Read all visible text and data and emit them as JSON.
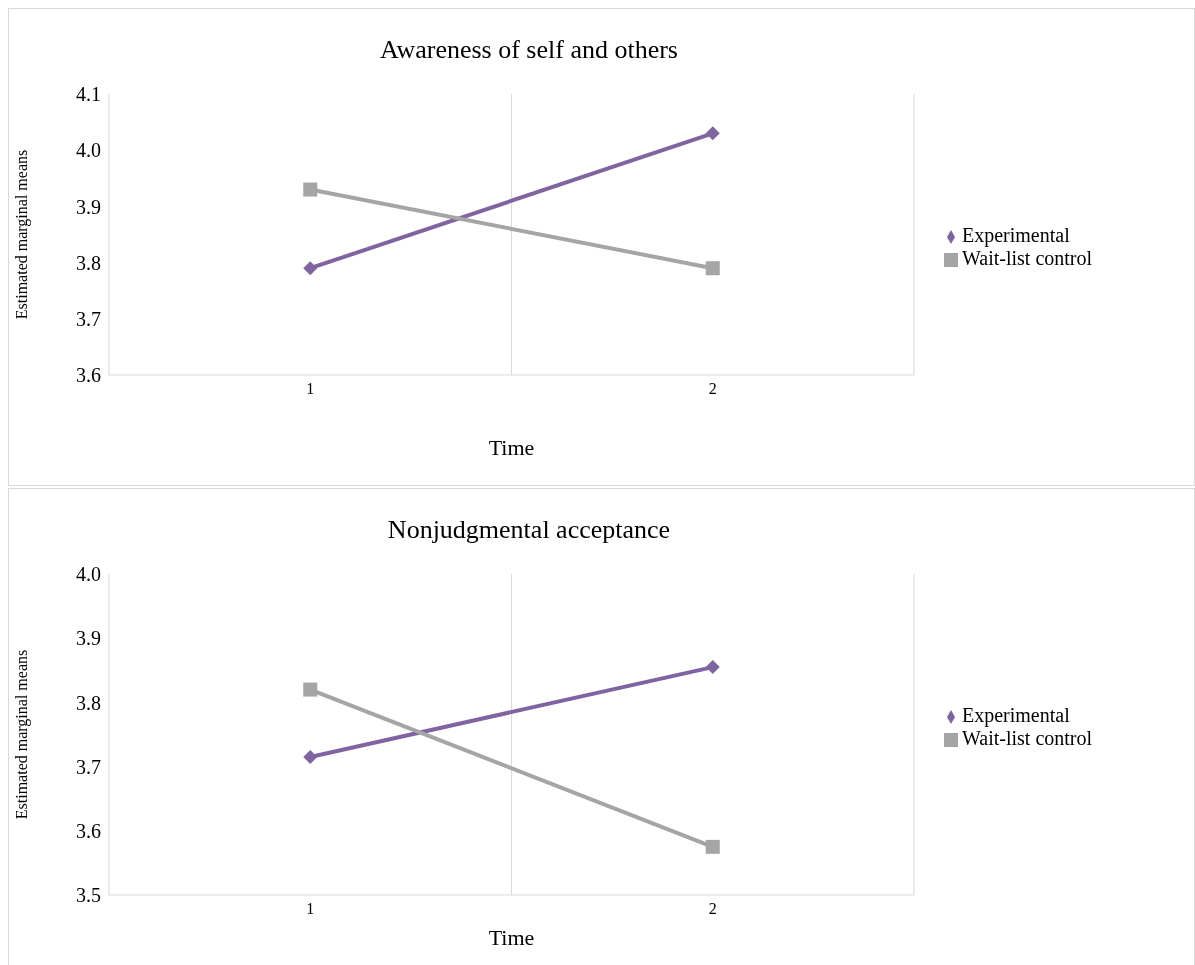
{
  "chart_data": [
    {
      "type": "line",
      "title": "Awareness of self and others",
      "xlabel": "Time",
      "ylabel": "Estimated marginal means",
      "categories": [
        "1",
        "2"
      ],
      "series": [
        {
          "name": "Experimental",
          "color": "#8064a2",
          "marker": "diamond",
          "values": [
            3.79,
            4.03
          ]
        },
        {
          "name": "Wait-list control",
          "color": "#a5a5a5",
          "marker": "square",
          "values": [
            3.93,
            3.79
          ]
        }
      ],
      "ylim": [
        3.6,
        4.1
      ],
      "yticks": [
        3.6,
        3.7,
        3.8,
        3.9,
        {
          "value": 4,
          "label": "4.0"
        },
        4.1
      ],
      "grid": "x",
      "legend": "right"
    },
    {
      "type": "line",
      "title": "Nonjudgmental acceptance",
      "xlabel": "Time",
      "ylabel": "Estimated marginal means",
      "categories": [
        "1",
        "2"
      ],
      "series": [
        {
          "name": "Experimental",
          "color": "#8064a2",
          "marker": "diamond",
          "values": [
            3.715,
            3.855
          ]
        },
        {
          "name": "Wait-list control",
          "color": "#a5a5a5",
          "marker": "square",
          "values": [
            3.82,
            3.575
          ]
        }
      ],
      "ylim": [
        3.5,
        4.0
      ],
      "yticks": [
        3.5,
        3.6,
        3.7,
        3.8,
        3.9,
        {
          "value": 4,
          "label": "4.0"
        }
      ],
      "grid": "x",
      "legend": "right"
    }
  ]
}
